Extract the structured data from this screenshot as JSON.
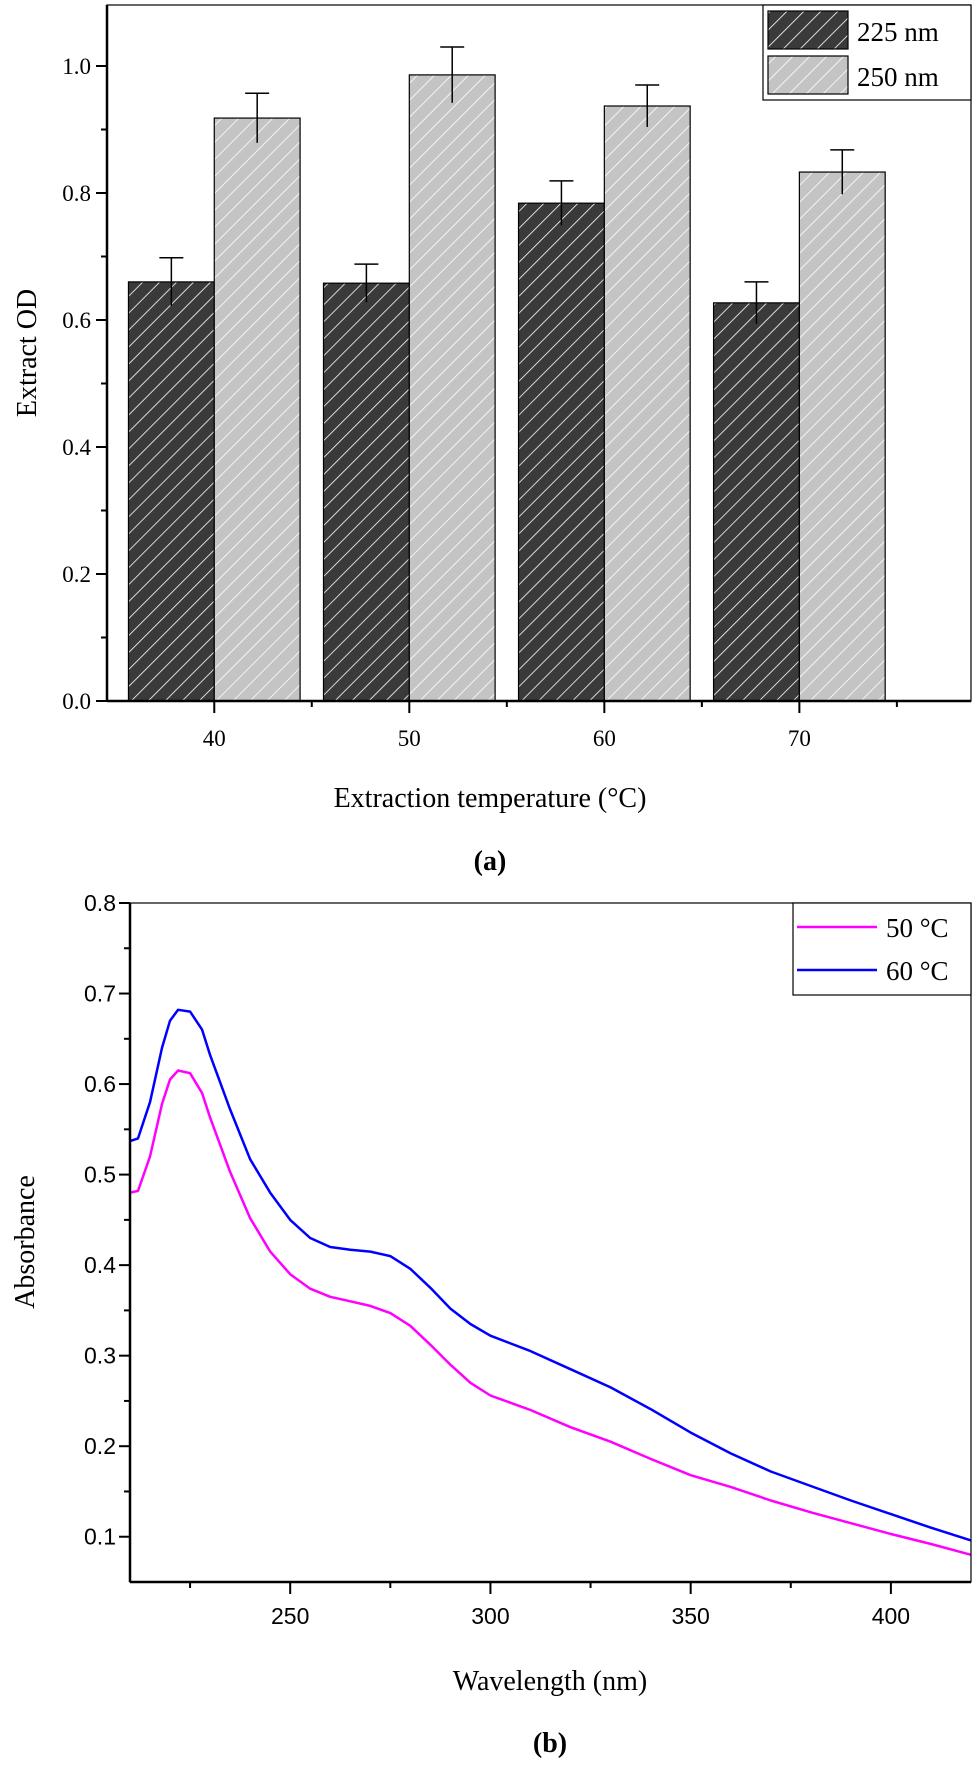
{
  "chart_data": [
    {
      "type": "bar",
      "panel_label": "(a)",
      "xlabel": "Extraction temperature (°C)",
      "ylabel": "Extract OD",
      "categories": [
        "40",
        "50",
        "60",
        "70"
      ],
      "category_values": [
        40,
        50,
        60,
        70
      ],
      "xlim": [
        34.5,
        78.8
      ],
      "ylim": [
        0,
        1.1
      ],
      "yticks": [
        "0.0",
        "0.2",
        "0.4",
        "0.6",
        "0.8",
        "1.0"
      ],
      "ytick_values": [
        0,
        0.2,
        0.4,
        0.6,
        0.8,
        1.0
      ],
      "legend_position": "top-right",
      "grid": false,
      "series": [
        {
          "name": "225 nm",
          "color": "#3a3a3a",
          "hatch": "diagonal",
          "values": [
            0.66,
            0.658,
            0.784,
            0.627
          ],
          "errors": [
            0.038,
            0.03,
            0.035,
            0.033
          ]
        },
        {
          "name": "250 nm",
          "color": "#c4c4c4",
          "hatch": "diagonal",
          "values": [
            0.918,
            0.986,
            0.937,
            0.833
          ],
          "errors": [
            0.039,
            0.044,
            0.033,
            0.035
          ]
        }
      ]
    },
    {
      "type": "line",
      "panel_label": "(b)",
      "xlabel": "Wavelength (nm)",
      "ylabel": "Absorbance",
      "xlim": [
        210,
        420
      ],
      "ylim": [
        0.05,
        0.8
      ],
      "xticks": [
        "250",
        "300",
        "350",
        "400"
      ],
      "xtick_values": [
        250,
        300,
        350,
        400
      ],
      "yticks": [
        "0.1",
        "0.2",
        "0.3",
        "0.4",
        "0.5",
        "0.6",
        "0.7",
        "0.8"
      ],
      "ytick_values": [
        0.1,
        0.2,
        0.3,
        0.4,
        0.5,
        0.6,
        0.7,
        0.8
      ],
      "legend_position": "top-right",
      "grid": false,
      "x": [
        210,
        212,
        215,
        218,
        220,
        222,
        225,
        228,
        230,
        235,
        240,
        245,
        250,
        255,
        260,
        265,
        270,
        275,
        280,
        285,
        290,
        295,
        300,
        310,
        320,
        330,
        340,
        350,
        360,
        370,
        380,
        390,
        400,
        410,
        420
      ],
      "series": [
        {
          "name": "50 °C",
          "color": "#ff00ff",
          "values": [
            0.48,
            0.482,
            0.52,
            0.578,
            0.605,
            0.615,
            0.612,
            0.59,
            0.563,
            0.503,
            0.452,
            0.415,
            0.39,
            0.374,
            0.365,
            0.36,
            0.355,
            0.347,
            0.333,
            0.312,
            0.29,
            0.27,
            0.256,
            0.24,
            0.221,
            0.205,
            0.186,
            0.168,
            0.155,
            0.14,
            0.127,
            0.115,
            0.103,
            0.092,
            0.08
          ]
        },
        {
          "name": "60 °C",
          "color": "#0000ff",
          "values": [
            0.537,
            0.54,
            0.58,
            0.64,
            0.67,
            0.682,
            0.68,
            0.66,
            0.632,
            0.572,
            0.517,
            0.48,
            0.45,
            0.43,
            0.42,
            0.417,
            0.415,
            0.41,
            0.396,
            0.375,
            0.352,
            0.335,
            0.322,
            0.305,
            0.285,
            0.265,
            0.241,
            0.215,
            0.192,
            0.172,
            0.156,
            0.14,
            0.125,
            0.11,
            0.096
          ]
        }
      ]
    }
  ]
}
